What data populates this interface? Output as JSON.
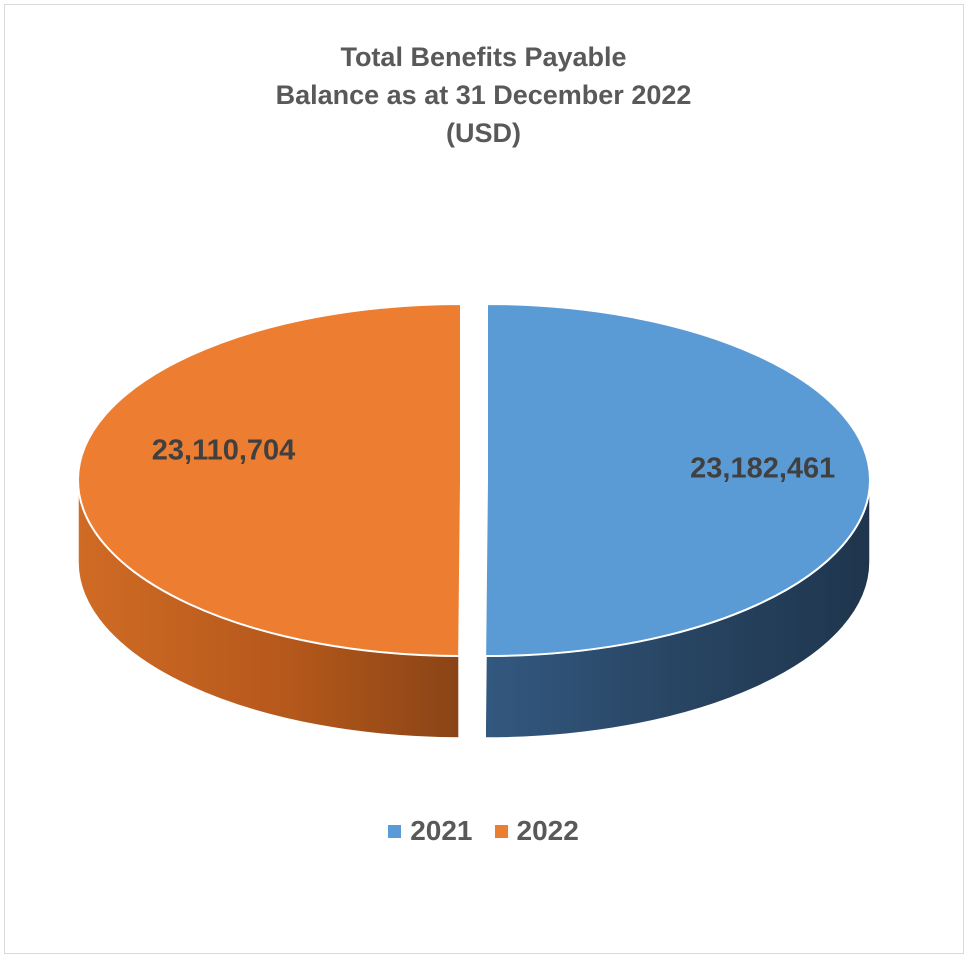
{
  "chart_data": {
    "type": "pie",
    "title_lines": [
      "Total Benefits Payable",
      "Balance as at 31 December 2022",
      "(USD)"
    ],
    "categories": [
      "2021",
      "2022"
    ],
    "values": [
      23182461,
      23110704
    ],
    "data_labels": [
      "23,182,461",
      "23,110,704"
    ],
    "colors": [
      "#5B9BD5",
      "#ED7D31"
    ],
    "legend_position": "bottom",
    "style": "3d-exploded"
  }
}
